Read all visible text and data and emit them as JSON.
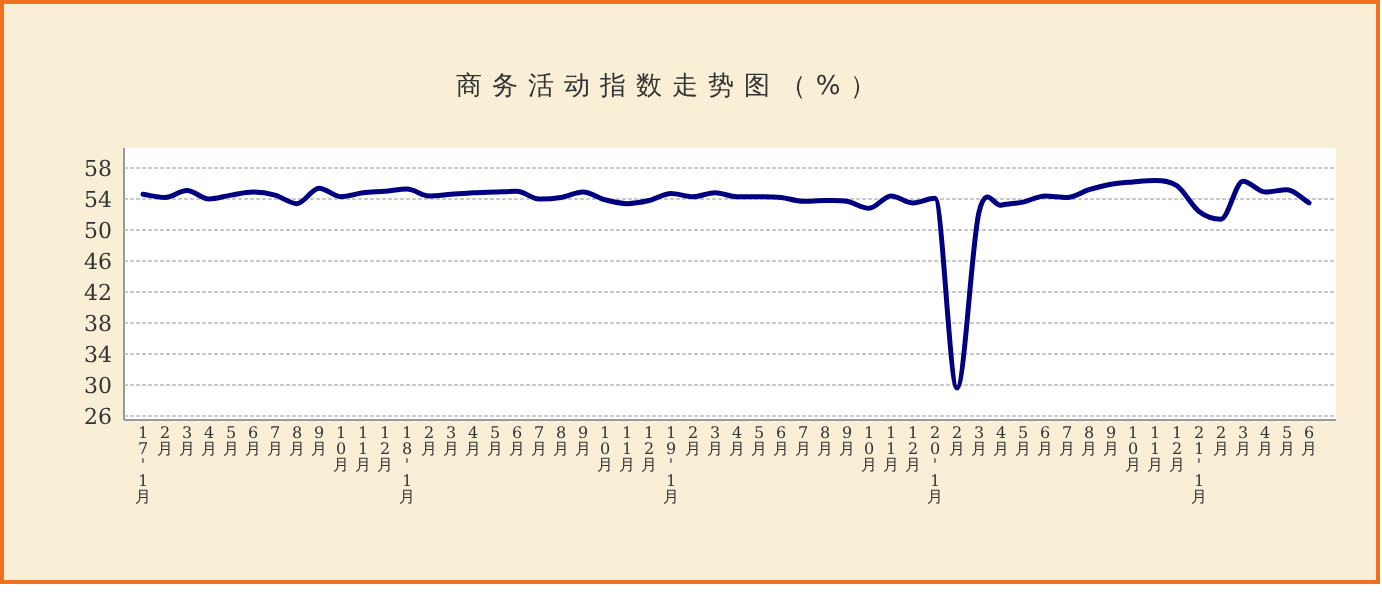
{
  "chart_data": {
    "type": "line",
    "title": "商务活动指数走势图（%）",
    "categories": [
      "17'1月",
      "2月",
      "3月",
      "4月",
      "5月",
      "6月",
      "7月",
      "8月",
      "9月",
      "10月",
      "11月",
      "12月",
      "18'1月",
      "2月",
      "3月",
      "4月",
      "5月",
      "6月",
      "7月",
      "8月",
      "9月",
      "10月",
      "11月",
      "12月",
      "19'1月",
      "2月",
      "3月",
      "4月",
      "5月",
      "6月",
      "7月",
      "8月",
      "9月",
      "10月",
      "11月",
      "12月",
      "20'1月",
      "2月",
      "3月",
      "4月",
      "5月",
      "6月",
      "7月",
      "8月",
      "9月",
      "10月",
      "11月",
      "12月",
      "21'1月",
      "2月",
      "3月",
      "4月",
      "5月",
      "6月"
    ],
    "series": [
      {
        "color": "#000080",
        "values": [
          54.6,
          54.2,
          55.1,
          54.0,
          54.5,
          54.9,
          54.5,
          53.4,
          55.4,
          54.3,
          54.8,
          55.0,
          55.3,
          54.4,
          54.6,
          54.8,
          54.9,
          55.0,
          54.0,
          54.2,
          54.9,
          53.9,
          53.4,
          53.8,
          54.7,
          54.3,
          54.8,
          54.3,
          54.3,
          54.2,
          53.7,
          53.8,
          53.7,
          52.8,
          54.4,
          53.5,
          54.1,
          29.6,
          52.3,
          53.2,
          53.6,
          54.4,
          54.2,
          55.2,
          55.9,
          56.2,
          56.4,
          55.7,
          52.4,
          51.4,
          56.3,
          54.9,
          55.2,
          53.5
        ]
      }
    ],
    "ylim": [
      26,
      58
    ],
    "yticks": [
      26,
      30,
      34,
      38,
      42,
      46,
      50,
      54,
      58
    ],
    "grid": "y",
    "marker": "none",
    "line_style": "solid"
  }
}
